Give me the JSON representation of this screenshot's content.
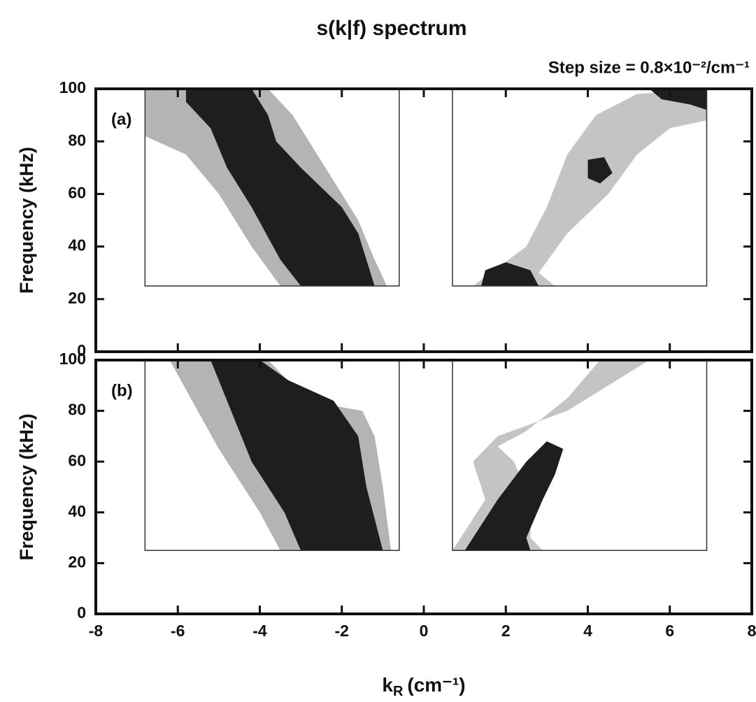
{
  "title": "s(k|f) spectrum",
  "subtitle": "Step size = 0.8×10⁻²/cm⁻¹",
  "xlabel": {
    "base": "k",
    "sub": "R",
    "unit": "(cm⁻¹)"
  },
  "chart_data": [
    {
      "type": "contour",
      "label": "(a)",
      "ylabel": "Frequency (kHz)",
      "xlim": [
        -8,
        8
      ],
      "xticks": [
        -8,
        -6,
        -4,
        -2,
        0,
        2,
        4,
        6,
        8
      ],
      "ylim": [
        0,
        100
      ],
      "yticks": [
        0,
        20,
        40,
        60,
        80,
        100
      ],
      "frames": [
        {
          "xlim": [
            -6.8,
            -0.6
          ],
          "ylim": [
            25,
            100
          ]
        },
        {
          "xlim": [
            0.7,
            6.9
          ],
          "ylim": [
            25,
            100
          ]
        }
      ],
      "regions": [
        {
          "color": "#b4b4b4",
          "x": [
            -6.8,
            -3.8,
            -3.2,
            -2.8,
            -2.2,
            -1.6,
            -1.2,
            -0.9,
            -3.5,
            -4.2,
            -5.0,
            -5.8,
            -6.8
          ],
          "y": [
            100,
            100,
            90,
            80,
            65,
            50,
            35,
            25,
            25,
            40,
            60,
            75,
            82
          ]
        },
        {
          "color": "#1e1e1e",
          "x": [
            -5.8,
            -4.2,
            -3.8,
            -3.6,
            -3.0,
            -2.0,
            -1.6,
            -1.3,
            -1.2,
            -3.0,
            -3.5,
            -4.2,
            -4.8,
            -5.2,
            -5.8
          ],
          "y": [
            100,
            100,
            90,
            80,
            70,
            55,
            45,
            30,
            25,
            25,
            35,
            55,
            70,
            85,
            95
          ]
        },
        {
          "color": "#c4c4c4",
          "x": [
            1.2,
            2.5,
            3.0,
            3.5,
            4.2,
            5.2,
            6.9,
            6.9,
            6.0,
            5.2,
            4.5,
            3.5,
            2.8,
            3.2
          ],
          "y": [
            25,
            40,
            55,
            75,
            90,
            98,
            100,
            88,
            85,
            75,
            60,
            45,
            30,
            25
          ]
        },
        {
          "color": "#1e1e1e",
          "x": [
            1.4,
            1.5,
            2.0,
            2.6,
            2.8
          ],
          "y": [
            25,
            31,
            34,
            31,
            25
          ]
        },
        {
          "color": "#1e1e1e",
          "x": [
            4.0,
            4.0,
            4.4,
            4.6,
            4.3
          ],
          "y": [
            66,
            73,
            74,
            68,
            64
          ]
        },
        {
          "color": "#1e1e1e",
          "x": [
            5.5,
            5.8,
            6.5,
            6.9,
            6.9
          ],
          "y": [
            100,
            96,
            94,
            92,
            100
          ]
        }
      ]
    },
    {
      "type": "contour",
      "label": "(b)",
      "ylabel": "Frequency (kHz)",
      "xlim": [
        -8,
        8
      ],
      "xticks": [
        -8,
        -6,
        -4,
        -2,
        0,
        2,
        4,
        6,
        8
      ],
      "ylim": [
        0,
        100
      ],
      "yticks": [
        0,
        20,
        40,
        60,
        80,
        100
      ],
      "frames": [
        {
          "xlim": [
            -6.8,
            -0.6
          ],
          "ylim": [
            25,
            100
          ]
        },
        {
          "xlim": [
            0.7,
            6.9
          ],
          "ylim": [
            25,
            100
          ]
        }
      ],
      "regions": [
        {
          "color": "#b4b4b4",
          "x": [
            -6.2,
            -3.8,
            -3.2,
            -2.2,
            -1.5,
            -1.2,
            -1.0,
            -0.8,
            -3.5,
            -4.0,
            -5.0
          ],
          "y": [
            100,
            100,
            90,
            82,
            80,
            70,
            50,
            25,
            25,
            40,
            65
          ]
        },
        {
          "color": "#1e1e1e",
          "x": [
            -5.2,
            -4.0,
            -3.3,
            -2.2,
            -1.6,
            -1.4,
            -1.0,
            -3.0,
            -3.4,
            -4.2
          ],
          "y": [
            100,
            100,
            92,
            84,
            70,
            50,
            25,
            25,
            40,
            60
          ]
        },
        {
          "color": "#c4c4c4",
          "x": [
            0.7,
            1.5,
            1.2,
            1.8,
            3.5,
            5.0,
            5.5,
            4.3,
            3.5,
            2.5,
            1.8,
            2.2,
            2.6,
            2.6,
            2.9
          ],
          "y": [
            25,
            45,
            60,
            70,
            80,
            95,
            100,
            100,
            85,
            72,
            66,
            60,
            45,
            30,
            25
          ]
        },
        {
          "color": "#1e1e1e",
          "x": [
            1.0,
            1.8,
            2.5,
            3.0,
            3.4,
            3.2,
            2.9,
            2.5,
            2.6
          ],
          "y": [
            25,
            45,
            60,
            68,
            65,
            55,
            45,
            30,
            25
          ]
        }
      ]
    }
  ]
}
